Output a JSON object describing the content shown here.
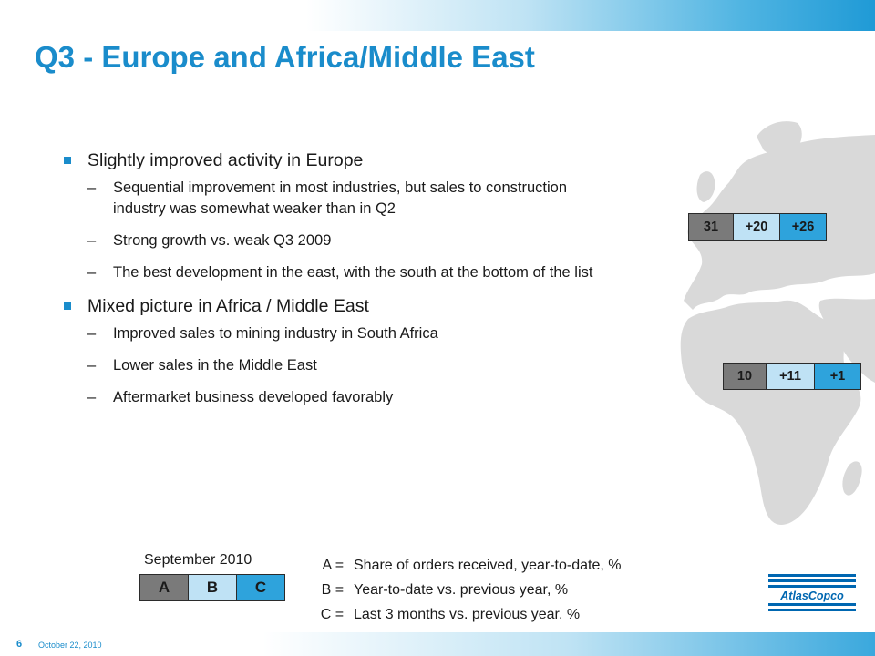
{
  "slide": {
    "title": "Q3 - Europe and Africa/Middle East",
    "page_number": "6",
    "date": "October 22, 2010"
  },
  "bullets": [
    {
      "text": "Slightly improved activity in Europe",
      "subs": [
        "Sequential improvement in most industries, but sales to construction industry was somewhat weaker than in Q2",
        "Strong growth vs. weak Q3 2009",
        "The best development in the east, with the south at the bottom of the list"
      ]
    },
    {
      "text": "Mixed picture in Africa / Middle East",
      "subs": [
        "Improved sales to mining industry in South Africa",
        "Lower sales in the Middle East",
        "Aftermarket business developed favorably"
      ]
    }
  ],
  "dash": "–",
  "regions": {
    "europe": {
      "a": "31",
      "b": "+20",
      "c": "+26"
    },
    "africa_middle_east": {
      "a": "10",
      "b": "+11",
      "c": "+1"
    }
  },
  "legend": {
    "heading": "September 2010",
    "labels": [
      "A",
      "B",
      "C"
    ],
    "definitions": [
      {
        "key": "A =",
        "text": "Share of orders received, year-to-date, %"
      },
      {
        "key": "B =",
        "text": "Year-to-date vs. previous year, %"
      },
      {
        "key": "C =",
        "text": "Last 3 months vs. previous year, %"
      }
    ]
  },
  "logo": {
    "text": "AtlasCopco",
    "colors": {
      "brand": "#0067b1"
    }
  },
  "colors": {
    "accent": "#1a8ccb",
    "cell_a": "#7a7a7a",
    "cell_b": "#bfe2f5",
    "cell_c": "#2ea3dc"
  }
}
